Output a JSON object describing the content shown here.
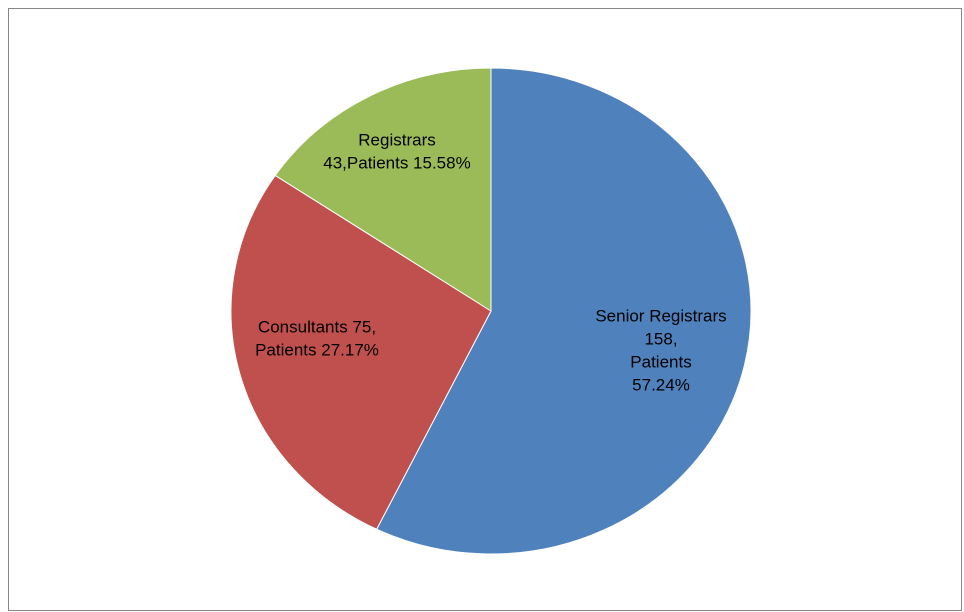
{
  "chart_data": {
    "type": "pie",
    "start_angle_deg": 0,
    "direction": "clockwise",
    "legend": "none",
    "slices": [
      {
        "name": "Senior Registrars",
        "value": 158,
        "percent": 57.24,
        "color": "#4F81BD",
        "label_lines": [
          "Senior Registrars",
          "158,",
          "Patients",
          "57.24%"
        ]
      },
      {
        "name": "Consultants",
        "value": 75,
        "percent": 27.17,
        "color": "#C0504D",
        "label_lines": [
          "Consultants 75,",
          "Patients 27.17%"
        ]
      },
      {
        "name": "Registrars",
        "value": 43,
        "percent": 15.58,
        "color": "#9BBB59",
        "label_lines": [
          "Registrars",
          "43,Patients 15.58%"
        ]
      }
    ]
  }
}
